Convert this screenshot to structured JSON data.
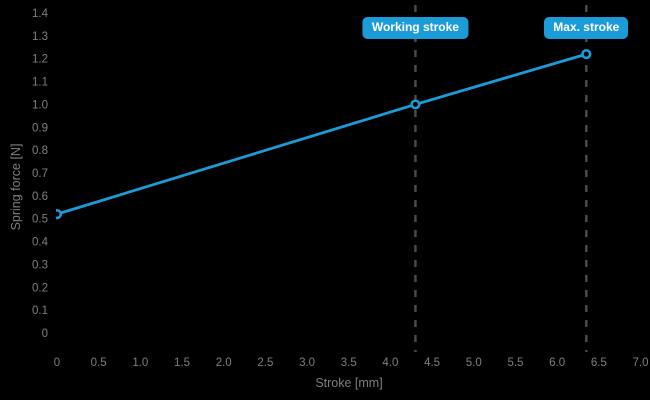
{
  "chart_data": {
    "type": "line",
    "title": "",
    "xlabel": "Stroke [mm]",
    "ylabel": "Spring force [N]",
    "series": [
      {
        "name": "spring-characteristic-line",
        "x": [
          0,
          4.3,
          6.35
        ],
        "y": [
          0.52,
          1.0,
          1.22
        ]
      }
    ],
    "xlim": [
      0,
      7.0
    ],
    "ylim": [
      0,
      1.4
    ],
    "grid": false,
    "legend": "none",
    "xticks": {
      "values": [
        0,
        0.5,
        1.0,
        1.5,
        2.0,
        2.5,
        3.0,
        3.5,
        4.0,
        4.5,
        5.0,
        5.5,
        6.0,
        6.5,
        7.0
      ],
      "labels": [
        "0",
        "0.5",
        "1.0",
        "1.5",
        "2.0",
        "2.5",
        "3.0",
        "3.5",
        "4.0",
        "4.5",
        "5.0",
        "5.5",
        "6.0",
        "6.5",
        "7.0"
      ]
    },
    "yticks": {
      "values": [
        0,
        0.1,
        0.2,
        0.3,
        0.4,
        0.5,
        0.6,
        0.7,
        0.8,
        0.9,
        1.0,
        1.1,
        1.2,
        1.3,
        1.4
      ],
      "labels": [
        "0",
        "0.1",
        "0.2",
        "0.3",
        "0.4",
        "0.5",
        "0.6",
        "0.7",
        "0.8",
        "0.9",
        "1.0",
        "1.1",
        "1.2",
        "1.3",
        "1.4"
      ]
    },
    "annotations": [
      {
        "label": "Working stroke",
        "x": 4.3
      },
      {
        "label": "Max. stroke",
        "x": 6.35
      }
    ],
    "colors": {
      "background": "#000000",
      "line": "#1b9cd8",
      "marker_fill": "#000000",
      "badge_bg": "#1b9cd8",
      "badge_text": "#ffffff",
      "axis_text": "#7f7f7f",
      "dashed_line": "#4a4a4a"
    }
  }
}
